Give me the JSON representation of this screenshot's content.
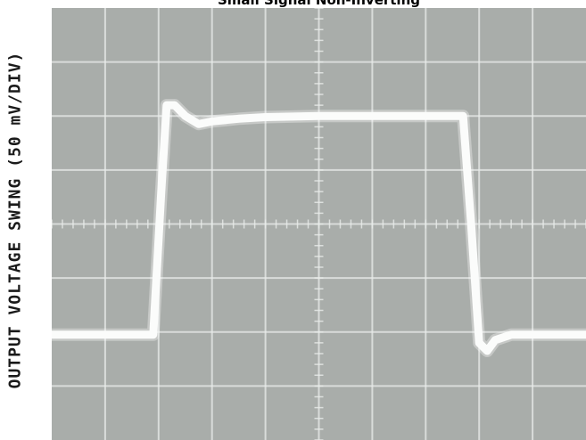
{
  "chart_data": {
    "type": "line",
    "title": "Small Signal Non-Inverting",
    "ylabel": "OUTPUT VOLTAGE SWING (50 mV/DIV)",
    "xlabel": "",
    "grid": true,
    "divisions": {
      "x": 10,
      "y": 8
    },
    "xlim": [
      0,
      10
    ],
    "ylim": [
      0,
      8
    ],
    "series": [
      {
        "x": [
          0,
          1.9,
          2.05,
          2.15,
          2.3,
          2.5,
          2.75,
          3.0,
          3.5,
          4.0,
          5.0,
          6.0,
          7.0,
          7.7,
          7.85,
          8.0,
          8.15,
          8.3,
          8.6,
          9.0,
          10.0
        ],
        "y": [
          1.95,
          1.95,
          4.6,
          6.2,
          6.2,
          6.0,
          5.85,
          5.9,
          5.95,
          5.98,
          6.0,
          6.0,
          6.0,
          6.0,
          4.0,
          1.8,
          1.65,
          1.85,
          1.95,
          1.95,
          1.95
        ]
      }
    ]
  },
  "colors": {
    "screen": "#a9adaa",
    "grid": "#e9ecea",
    "trace": "#fbfcfb",
    "text": "#000000"
  }
}
